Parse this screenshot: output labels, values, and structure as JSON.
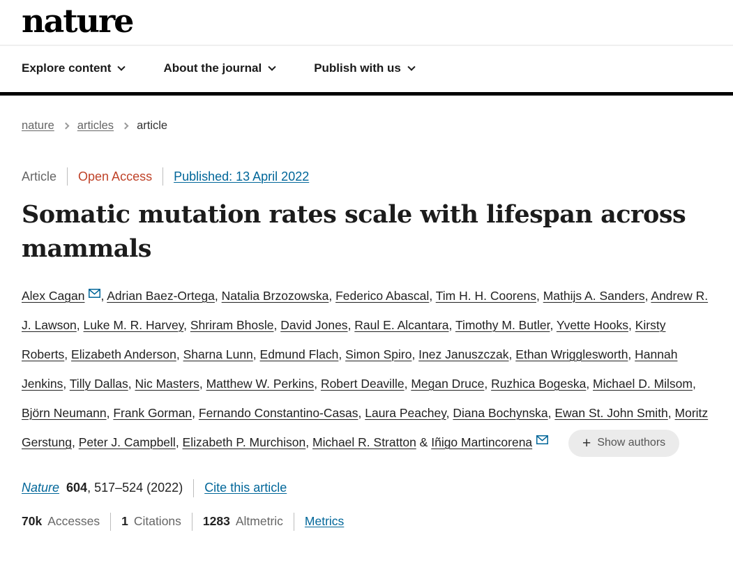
{
  "header": {
    "logo": "nature",
    "nav": [
      {
        "label": "Explore content"
      },
      {
        "label": "About the journal"
      },
      {
        "label": "Publish with us"
      }
    ]
  },
  "breadcrumb": {
    "items": [
      {
        "label": "nature"
      },
      {
        "label": "articles"
      },
      {
        "label": "article"
      }
    ]
  },
  "article": {
    "type_label": "Article",
    "access_label": "Open Access",
    "published_label": "Published: 13 April 2022",
    "title": "Somatic mutation rates scale with lifespan across mammals",
    "authors": [
      {
        "name": "Alex Cagan",
        "email": true
      },
      {
        "name": "Adrian Baez-Ortega"
      },
      {
        "name": "Natalia Brzozowska"
      },
      {
        "name": "Federico Abascal"
      },
      {
        "name": "Tim H. H. Coorens"
      },
      {
        "name": "Mathijs A. Sanders"
      },
      {
        "name": "Andrew R. J. Lawson"
      },
      {
        "name": "Luke M. R. Harvey"
      },
      {
        "name": "Shriram Bhosle"
      },
      {
        "name": "David Jones"
      },
      {
        "name": "Raul E. Alcantara"
      },
      {
        "name": "Timothy M. Butler"
      },
      {
        "name": "Yvette Hooks"
      },
      {
        "name": "Kirsty Roberts"
      },
      {
        "name": "Elizabeth Anderson"
      },
      {
        "name": "Sharna Lunn"
      },
      {
        "name": "Edmund Flach"
      },
      {
        "name": "Simon Spiro"
      },
      {
        "name": "Inez Januszczak"
      },
      {
        "name": "Ethan Wrigglesworth"
      },
      {
        "name": "Hannah Jenkins"
      },
      {
        "name": "Tilly Dallas"
      },
      {
        "name": "Nic Masters"
      },
      {
        "name": "Matthew W. Perkins"
      },
      {
        "name": "Robert Deaville"
      },
      {
        "name": "Megan Druce"
      },
      {
        "name": "Ruzhica Bogeska"
      },
      {
        "name": "Michael D. Milsom"
      },
      {
        "name": "Björn Neumann"
      },
      {
        "name": "Frank Gorman"
      },
      {
        "name": "Fernando Constantino-Casas"
      },
      {
        "name": "Laura Peachey"
      },
      {
        "name": "Diana Bochynska"
      },
      {
        "name": "Ewan St. John Smith"
      },
      {
        "name": "Moritz Gerstung"
      },
      {
        "name": "Peter J. Campbell"
      },
      {
        "name": "Elizabeth P. Murchison"
      },
      {
        "name": "Michael R. Stratton"
      },
      {
        "name": "Iñigo Martincorena",
        "email": true
      }
    ],
    "show_authors_label": "Show authors",
    "citation": {
      "journal": "Nature",
      "volume": "604",
      "pages": ", 517–524 (2022)",
      "cite_link": "Cite this article"
    },
    "metrics": [
      {
        "value": "70k",
        "label": "Accesses"
      },
      {
        "value": "1",
        "label": "Citations"
      },
      {
        "value": "1283",
        "label": "Altmetric"
      }
    ],
    "metrics_link": "Metrics"
  },
  "colors": {
    "link_blue": "#006699",
    "open_access_red": "#bf4228",
    "text_dark": "#222222",
    "text_gray": "#666666",
    "rule_black": "#000000"
  }
}
